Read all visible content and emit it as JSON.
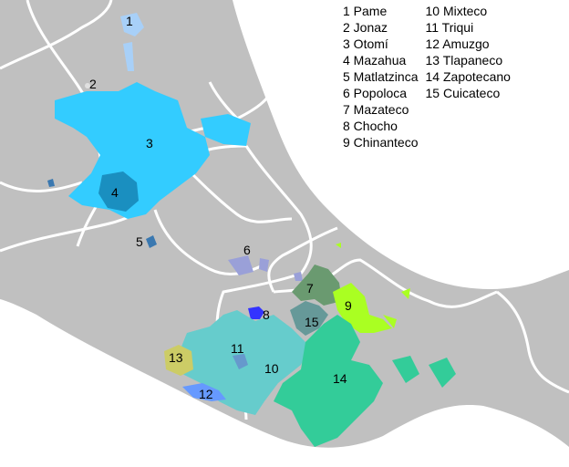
{
  "colors": {
    "land": "#c0c0c0",
    "sea": "#ffffff",
    "border": "#ffffff"
  },
  "languages": [
    {
      "n": "1",
      "name": "Pame",
      "color": "#a8d0f8"
    },
    {
      "n": "2",
      "name": "Jonaz",
      "color": "#e0e0e0"
    },
    {
      "n": "3",
      "name": "Otomí",
      "color": "#33ccff"
    },
    {
      "n": "4",
      "name": "Mazahua",
      "color": "#1a8fc0"
    },
    {
      "n": "5",
      "name": "Matlatzinca",
      "color": "#3a78b0"
    },
    {
      "n": "6",
      "name": "Popoloca",
      "color": "#9aa0d8"
    },
    {
      "n": "7",
      "name": "Mazateco",
      "color": "#6a9a70"
    },
    {
      "n": "8",
      "name": "Chocho",
      "color": "#3333ff"
    },
    {
      "n": "9",
      "name": "Chinanteco",
      "color": "#aaff22"
    },
    {
      "n": "10",
      "name": "Mixteco",
      "color": "#66cccc"
    },
    {
      "n": "11",
      "name": "Triqui",
      "color": "#6699cc"
    },
    {
      "n": "12",
      "name": "Amuzgo",
      "color": "#6699ff"
    },
    {
      "n": "13",
      "name": "Tlapaneco",
      "color": "#cccc66"
    },
    {
      "n": "14",
      "name": "Zapotecano",
      "color": "#33cc99"
    },
    {
      "n": "15",
      "name": "Cuicateco",
      "color": "#669999"
    }
  ],
  "legend": [
    [
      "1 Pame",
      "2 Jonaz",
      "3 Otomí",
      "4 Mazahua",
      "5 Matlatzinca",
      "6 Popoloca",
      "7 Mazateco",
      "8 Chocho",
      "9 Chinanteco"
    ],
    [
      "10 Mixteco",
      "11 Triqui",
      "12 Amuzgo",
      "13 Tlapaneco",
      "14 Zapotecano",
      "15 Cuicateco"
    ]
  ]
}
